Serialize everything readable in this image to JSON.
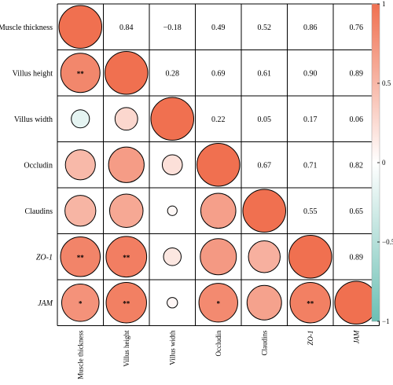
{
  "chart_data": {
    "type": "heatmap",
    "subtype": "correlation-matrix",
    "variables": [
      "Muscle thickness",
      "Villus height",
      "Villus width",
      "Occludin",
      "Claudins",
      "ZO-1",
      "JAM"
    ],
    "italic_variables": [
      "ZO-1",
      "JAM"
    ],
    "matrix": [
      [
        1.0,
        0.84,
        -0.18,
        0.49,
        0.52,
        0.86,
        0.76
      ],
      [
        0.84,
        1.0,
        0.28,
        0.69,
        0.61,
        0.9,
        0.89
      ],
      [
        -0.18,
        0.28,
        1.0,
        0.22,
        0.05,
        0.17,
        0.06
      ],
      [
        0.49,
        0.69,
        0.22,
        1.0,
        0.67,
        0.71,
        0.82
      ],
      [
        0.52,
        0.61,
        0.05,
        0.67,
        1.0,
        0.55,
        0.65
      ],
      [
        0.86,
        0.9,
        0.17,
        0.71,
        0.55,
        1.0,
        0.89
      ],
      [
        0.76,
        0.89,
        0.06,
        0.82,
        0.65,
        0.89,
        1.0
      ]
    ],
    "upper_values_text": [
      [
        "",
        "0.84",
        "−0.18",
        "0.49",
        "0.52",
        "0.86",
        "0.76"
      ],
      [
        "",
        "",
        "0.28",
        "0.69",
        "0.61",
        "0.90",
        "0.89"
      ],
      [
        "",
        "",
        "",
        "0.22",
        "0.05",
        "0.17",
        "0.06"
      ],
      [
        "",
        "",
        "",
        "",
        "0.67",
        "0.71",
        "0.82"
      ],
      [
        "",
        "",
        "",
        "",
        "",
        "0.55",
        "0.65"
      ],
      [
        "",
        "",
        "",
        "",
        "",
        "",
        "0.89"
      ],
      [
        "",
        "",
        "",
        "",
        "",
        "",
        ""
      ]
    ],
    "significance": [
      [
        "",
        "",
        "",
        "",
        "",
        "",
        ""
      ],
      [
        "**",
        "",
        "",
        "",
        "",
        "",
        ""
      ],
      [
        "",
        "",
        "",
        "",
        "",
        "",
        ""
      ],
      [
        "",
        "",
        "",
        "",
        "",
        "",
        ""
      ],
      [
        "",
        "",
        "",
        "",
        "",
        "",
        ""
      ],
      [
        "**",
        "**",
        "",
        "",
        "",
        "",
        ""
      ],
      [
        "*",
        "**",
        "",
        "*",
        "",
        "**",
        ""
      ]
    ],
    "lower_display": "circles",
    "upper_display": "numbers",
    "colorbar": {
      "ticks": [
        1,
        0.5,
        0,
        -0.5,
        -1
      ],
      "tick_labels": [
        "1",
        "0.5",
        "0",
        "−0.5",
        "−1"
      ],
      "positive_color": "#f07050",
      "zero_color": "#ffffff",
      "negative_color": "#6cc0b4",
      "placement": "right"
    }
  }
}
